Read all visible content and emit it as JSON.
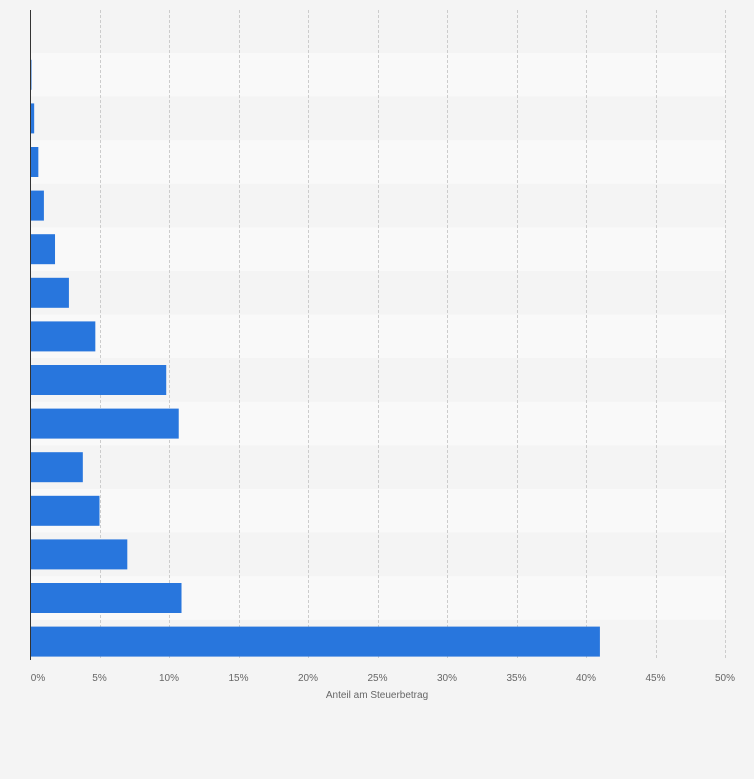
{
  "chart_data": {
    "type": "bar",
    "orientation": "horizontal",
    "xlabel": "Anteil am Steuerbetrag",
    "xlim": [
      0,
      50
    ],
    "x_ticks": [
      0,
      5,
      10,
      15,
      20,
      25,
      30,
      35,
      40,
      45,
      50
    ],
    "x_tick_labels": [
      "0%",
      "5%",
      "10%",
      "15%",
      "20%",
      "25%",
      "30%",
      "35%",
      "40%",
      "45%",
      "50%"
    ],
    "values": [
      0.1,
      0.3,
      0.6,
      1.0,
      1.8,
      2.8,
      4.7,
      9.8,
      10.7,
      3.8,
      5.0,
      7.0,
      10.9,
      41.0
    ],
    "grid": true,
    "legend": "none",
    "colors": {
      "bar": "#2876dd",
      "background": "#f4f4f4",
      "band_light": "#f9f9f9",
      "band_dark": "#f4f4f4",
      "gridline": "#cccccc",
      "axis": "#333333",
      "text": "#666666"
    }
  }
}
